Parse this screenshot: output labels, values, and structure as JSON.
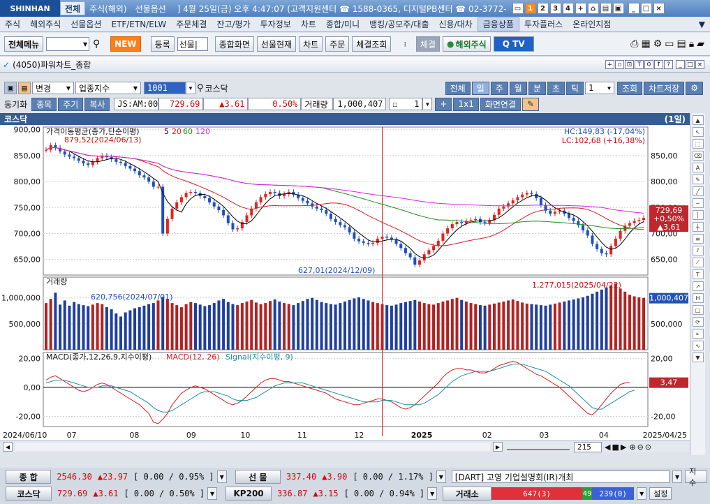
{
  "titlebar": {
    "logo": "SHINHAN",
    "tabs": [
      "전체",
      "주식(해외)",
      "선물옵션"
    ],
    "info": "] 4월 25일(금) 오후 4:47:07 (고객지원센터 ☎ 1588-0365, 디지털PB센터 ☎ 02-3772-",
    "num_buttons": [
      "1",
      "2",
      "3",
      "4",
      "+"
    ]
  },
  "menubar": {
    "items": [
      "주식",
      "해외주식",
      "선물옵션",
      "ETF/ETN/ELW",
      "주문체결",
      "잔고/평가",
      "투자정보",
      "차트",
      "종합/미니",
      "뱅킹/공모주/대출",
      "신용/대차",
      "금융상품",
      "투자플러스",
      "온라인지점"
    ],
    "selected": "금융상품"
  },
  "toolbar": {
    "all_menu": "전체메뉴",
    "new": "NEW",
    "register": "등록",
    "select_value": "선물|",
    "buttons": [
      "종합화면",
      "선물현재",
      "차트",
      "주문",
      "체결조회"
    ],
    "exec_btn": "체결",
    "overseas": "해외주식",
    "tv": "Q TV"
  },
  "window": {
    "title": "(4050)파워차트_종합"
  },
  "chart_toolbar": {
    "change": "변경",
    "category": "업종지수",
    "code": "1001",
    "name": "코스닥",
    "periods": [
      "전체",
      "일",
      "주",
      "월",
      "분",
      "초",
      "틱"
    ],
    "count": "1",
    "query": "조회",
    "save": "차트저장",
    "sync_label": "동기화",
    "sync_buttons": [
      "종목",
      "주기",
      "복사"
    ],
    "info_cells": [
      "JS:AM:00",
      "729.69",
      "▲3.61",
      "0.50%",
      "거래량",
      "1,000,407"
    ],
    "ratio": "1",
    "ratio_btn": "1x1",
    "link_btn": "화면연결"
  },
  "chart_header": {
    "left": "코스닥",
    "right": "(1일)"
  },
  "chart_data": {
    "type": "line",
    "price_panel": {
      "legend": "가격이동평균(종가,단순이평)",
      "ma_periods": [
        "5",
        "20",
        "60",
        "120"
      ],
      "ma_colors": [
        "#000000",
        "#d81f1f",
        "#1a8f1a",
        "#e020e0"
      ],
      "y_ticks": [
        "900,00",
        "850,00",
        "800,00",
        "750,00",
        "700,00",
        "650,00"
      ],
      "y_ticks_right": [
        "850,00",
        "800,00",
        "750,00",
        "700,00",
        "650,00"
      ],
      "ylim": [
        620,
        905
      ],
      "hc": "HC:149,83 (-17,04%)",
      "lc": "LC:102,68 (+16,38%)",
      "max_label": "879,52(2024/06/13)",
      "min_label": "627,01(2024/12/09)",
      "last_price": "729,69",
      "last_pct": "+0,50%",
      "last_chg": "▲3,61",
      "closes": [
        861,
        870,
        865,
        858,
        852,
        848,
        845,
        840,
        835,
        832,
        838,
        845,
        850,
        847,
        843,
        838,
        836,
        830,
        825,
        820,
        812,
        808,
        800,
        790,
        790,
        700,
        728,
        748,
        760,
        770,
        778,
        780,
        778,
        772,
        768,
        760,
        752,
        745,
        735,
        720,
        708,
        710,
        722,
        735,
        748,
        760,
        770,
        776,
        780,
        778,
        772,
        776,
        780,
        775,
        768,
        763,
        758,
        752,
        748,
        745,
        738,
        728,
        722,
        716,
        712,
        702,
        690,
        685,
        682,
        680,
        682,
        690,
        694,
        692,
        688,
        680,
        672,
        662,
        654,
        640,
        648,
        660,
        668,
        676,
        686,
        700,
        710,
        718,
        722,
        720,
        724,
        726,
        728,
        722,
        720,
        726,
        736,
        748,
        752,
        758,
        764,
        770,
        775,
        778,
        776,
        768,
        755,
        744,
        738,
        742,
        744,
        738,
        730,
        724,
        716,
        706,
        696,
        680,
        670,
        662,
        660,
        676,
        690,
        705,
        715,
        720,
        724,
        726,
        730
      ]
    },
    "volume_panel": {
      "legend": "거래량",
      "y_ticks": [
        "1,000,000",
        "500,000"
      ],
      "y_ticks_right": [
        "500,000"
      ],
      "ylim": [
        0,
        1400000
      ],
      "max_label": "1,277,015(2025/04/22)",
      "min_label": "620,756(2024/07/01)",
      "last_value": "1,000,407",
      "values": [
        900000,
        980000,
        1100000,
        870000,
        950000,
        850000,
        920000,
        880000,
        860000,
        840000,
        870000,
        900000,
        880000,
        820000,
        780000,
        700000,
        640000,
        720000,
        760000,
        800000,
        820000,
        850000,
        880000,
        900000,
        950000,
        1020000,
        980000,
        900000,
        860000,
        820000,
        880000,
        920000,
        900000,
        870000,
        840000,
        860000,
        900000,
        950000,
        980000,
        920000,
        880000,
        860000,
        900000,
        930000,
        960000,
        910000,
        880000,
        900000,
        940000,
        970000,
        930000,
        900000,
        880000,
        860000,
        900000,
        940000,
        980000,
        1000000,
        960000,
        920000,
        900000,
        880000,
        870000,
        900000,
        930000,
        960000,
        990000,
        1010000,
        980000,
        950000,
        920000,
        900000,
        880000,
        860000,
        850000,
        870000,
        900000,
        920000,
        940000,
        960000,
        930000,
        900000,
        880000,
        870000,
        900000,
        930000,
        950000,
        980000,
        1000000,
        960000,
        930000,
        900000,
        880000,
        860000,
        850000,
        870000,
        890000,
        910000,
        930000,
        950000,
        970000,
        940000,
        910000,
        890000,
        880000,
        870000,
        860000,
        850000,
        870000,
        890000,
        910000,
        930000,
        950000,
        970000,
        990000,
        1010000,
        1040000,
        1080000,
        1120000,
        1160000,
        1200000,
        1240000,
        1277015,
        1180000,
        1120000,
        1060000,
        1030000,
        1010000,
        1000407
      ]
    },
    "macd_panel": {
      "legend": "MACD(종가,12,26,9,지수이평)",
      "macd_label": "MACD(12, 26)",
      "signal_label": "Signal(지수이평, 9)",
      "y_ticks": [
        "20,00",
        "0,00",
        "-20,00"
      ],
      "y_ticks_right": [
        "20,00",
        "-20,00"
      ],
      "ylim": [
        -27,
        24
      ],
      "last_value": "3,47",
      "macd": [
        5,
        7,
        8,
        6,
        4,
        2,
        0,
        -2,
        -3,
        -2,
        0,
        2,
        3,
        2,
        0,
        -2,
        -4,
        -6,
        -8,
        -10,
        -12,
        -15,
        -18,
        -24,
        -25,
        -22,
        -18,
        -12,
        -8,
        -4,
        -2,
        0,
        1,
        0,
        -1,
        -3,
        -5,
        -7,
        -9,
        -11,
        -12,
        -11,
        -9,
        -6,
        -3,
        0,
        3,
        5,
        6,
        6,
        5,
        4,
        4,
        3,
        2,
        1,
        0,
        -1,
        -2,
        -3,
        -4,
        -6,
        -8,
        -9,
        -10,
        -11,
        -12,
        -12,
        -11,
        -10,
        -9,
        -8,
        -8,
        -9,
        -10,
        -12,
        -14,
        -15,
        -14,
        -12,
        -9,
        -6,
        -3,
        0,
        3,
        7,
        10,
        12,
        13,
        13,
        12,
        12,
        11,
        10,
        10,
        11,
        13,
        15,
        16,
        17,
        18,
        17,
        15,
        13,
        11,
        9,
        8,
        6,
        4,
        2,
        0,
        -3,
        -6,
        -9,
        -12,
        -15,
        -18,
        -19,
        -16,
        -12,
        -8,
        -4,
        -1,
        2,
        3,
        3.47
      ],
      "signal": [
        3,
        4,
        5,
        5,
        5,
        4,
        3,
        2,
        1,
        0,
        0,
        0,
        1,
        1,
        1,
        0,
        -1,
        -2,
        -3,
        -5,
        -7,
        -9,
        -11,
        -14,
        -16,
        -17,
        -17,
        -16,
        -14,
        -12,
        -10,
        -8,
        -6,
        -4,
        -3,
        -3,
        -3,
        -4,
        -5,
        -6,
        -8,
        -9,
        -9,
        -9,
        -8,
        -7,
        -5,
        -3,
        -1,
        1,
        2,
        3,
        3,
        3,
        3,
        3,
        2,
        1,
        0,
        -1,
        -2,
        -3,
        -4,
        -5,
        -6,
        -7,
        -8,
        -9,
        -10,
        -10,
        -10,
        -10,
        -9,
        -9,
        -9,
        -10,
        -11,
        -12,
        -12,
        -12,
        -12,
        -11,
        -9,
        -7,
        -5,
        -2,
        1,
        4,
        6,
        8,
        9,
        10,
        11,
        11,
        11,
        11,
        12,
        13,
        14,
        15,
        16,
        16,
        16,
        15,
        14,
        13,
        12,
        11,
        9,
        7,
        5,
        3,
        1,
        -2,
        -5,
        -8,
        -11,
        -14,
        -15,
        -15,
        -13,
        -11,
        -9,
        -7,
        -5,
        -3,
        -2
      ]
    },
    "x_labels": [
      "2024/06/10",
      "07",
      "08",
      "09",
      "10",
      "11",
      "12",
      "2025",
      "02",
      "03",
      "04",
      "2025/04/25"
    ]
  },
  "scroll": {
    "zoom": "215"
  },
  "ticker": {
    "row1": [
      {
        "name": "종 합",
        "value": "2546.30",
        "chg": "▲23.97",
        "extra": "[ 0.00  / 0.95% ]"
      },
      {
        "name": "선 물",
        "value": "337.40",
        "chg": "▲3.90",
        "extra": "[ 0.00  / 1.17% ]"
      }
    ],
    "row2": [
      {
        "name": "코스닥",
        "value": "729.69",
        "chg": "▲3.61",
        "extra": "[ 0.00  / 0.50% ]"
      },
      {
        "name": "KP200",
        "value": "336.87",
        "chg": "▲3.15",
        "extra": "[ 0.00  / 0.94% ]"
      }
    ],
    "news": "[DART] 고영 기업설명회(IR)개최",
    "news_btn": "지수",
    "exchange": "거래소",
    "advance": "647(3)",
    "flat": "49",
    "decline": "239(0)",
    "settings": "설정"
  }
}
